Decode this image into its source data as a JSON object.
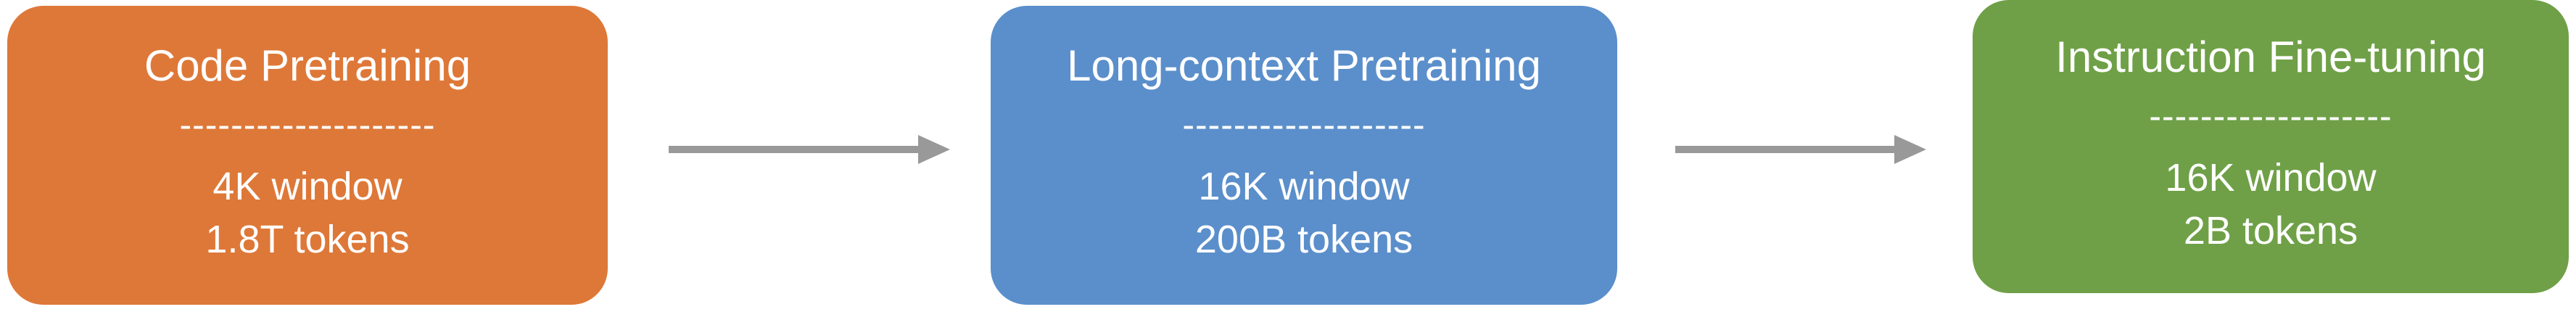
{
  "colors": {
    "code_pretraining": "#DE7838",
    "long_context_pretraining": "#5B8FCB",
    "instruction_fine_tuning": "#6FA047",
    "arrow": "#999999",
    "text": "#FFFFFF"
  },
  "stages": [
    {
      "title": "Code Pretraining",
      "divider": "--------------------",
      "details": [
        "4K window",
        "1.8T tokens"
      ]
    },
    {
      "title": "Long-context Pretraining",
      "divider": "-------------------",
      "details": [
        "16K window",
        "200B tokens"
      ]
    },
    {
      "title": "Instruction Fine-tuning",
      "divider": "-------------------",
      "details": [
        "16K window",
        "2B tokens"
      ]
    }
  ],
  "icons": {
    "arrow_1": "arrow-right-icon",
    "arrow_2": "arrow-right-icon"
  }
}
